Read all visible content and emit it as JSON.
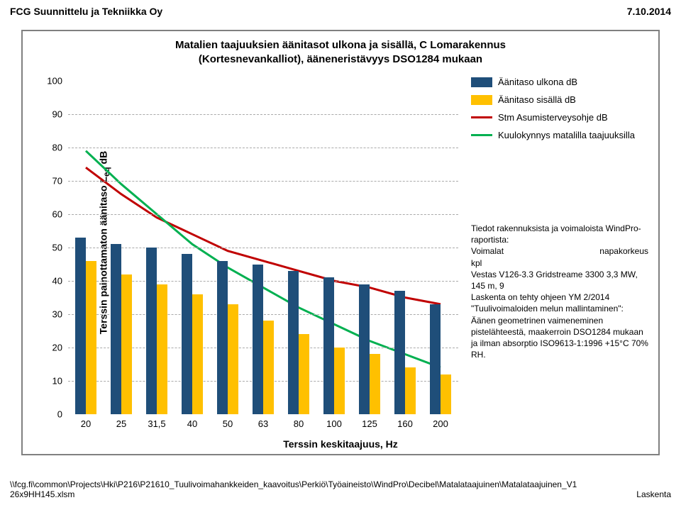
{
  "header": {
    "left": "FCG Suunnittelu ja Tekniikka Oy",
    "right": "7.10.2014"
  },
  "chart": {
    "type": "bar+line",
    "title_line1": "Matalien taajuuksien äänitasot ulkona ja sisällä, C Lomarakennus",
    "title_line2": "(Kortesnevankalliot), ääneneristävyys DSO1284 mukaan",
    "y_label": "Terssin painottamaton äänitaso Leq dB",
    "x_label": "Terssin keskitaajuus, Hz",
    "background_color": "#ffffff",
    "grid_color": "#aaaaaa",
    "ylim": [
      0,
      100
    ],
    "ytick_step": 10,
    "categories": [
      "20",
      "25",
      "31,5",
      "40",
      "50",
      "63",
      "80",
      "100",
      "125",
      "160",
      "200"
    ],
    "bar_width_rel": 0.3,
    "series_bars": [
      {
        "name": "Äänitaso ulkona dB",
        "color": "#1f4e79",
        "values": [
          53,
          51,
          50,
          48,
          46,
          45,
          43,
          41,
          39,
          37,
          33
        ]
      },
      {
        "name": "Äänitaso sisällä dB",
        "color": "#ffc000",
        "values": [
          46,
          42,
          39,
          36,
          33,
          28,
          24,
          20,
          18,
          14,
          12
        ]
      }
    ],
    "series_lines": [
      {
        "name": "Stm Asumisterveysohje dB",
        "color": "#c00000",
        "width": 3,
        "values": [
          74,
          66,
          59,
          54,
          49,
          46,
          43,
          40,
          38,
          35,
          33
        ]
      },
      {
        "name": "Kuulokynnys matalilla taajuuksilla",
        "color": "#00b050",
        "width": 3,
        "values": [
          79,
          69,
          60,
          51,
          44,
          38,
          32,
          27,
          22,
          18,
          14
        ]
      }
    ],
    "legend": {
      "items": [
        {
          "kind": "swatch",
          "color": "#1f4e79",
          "label": "Äänitaso ulkona dB"
        },
        {
          "kind": "swatch",
          "color": "#ffc000",
          "label": "Äänitaso sisällä dB"
        },
        {
          "kind": "line",
          "color": "#c00000",
          "label": "Stm Asumisterveysohje dB"
        },
        {
          "kind": "line",
          "color": "#00b050",
          "label": "Kuulokynnys matalilla taajuuksilla"
        }
      ]
    },
    "title_fontsize": 15,
    "label_fontsize": 14,
    "tick_fontsize": 13
  },
  "info": {
    "line1": "Tiedot rakennuksista ja voimaloista WindPro-raportista:",
    "col_left": "Voimalat",
    "col_right": "napakorkeus",
    "line3": "kpl",
    "line4": "Vestas V126-3.3 Gridstreame 3300 3,3 MW, 145 m, 9",
    "line5": "Laskenta on tehty ohjeen YM 2/2014 \"Tuulivoimaloiden melun mallintaminen\":",
    "line6": "Äänen geometrinen vaimeneminen pistelähteestä, maakerroin DSO1284 mukaan ja ilman absorptio ISO9613-1:1996 +15°C 70% RH."
  },
  "footer": {
    "path": "\\\\fcg.fi\\common\\Projects\\Hki\\P216\\P21610_Tuulivoimahankkeiden_kaavoitus\\Perkiö\\Työaineisto\\WindPro\\Decibel\\Matalataajuinen\\Matalataajuinen_V126x9HH145.xlsm",
    "right": "Laskenta"
  }
}
